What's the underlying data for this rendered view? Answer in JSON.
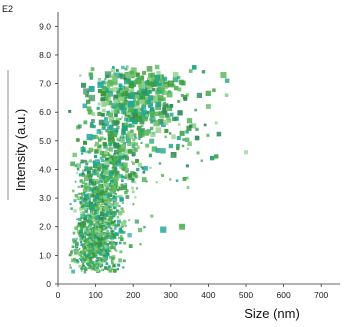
{
  "chart_data": {
    "type": "scatter",
    "panel_label": "E2",
    "xlabel": "Size (nm)",
    "ylabel": "Intensity (a.u.)",
    "xlim": [
      0,
      750
    ],
    "ylim": [
      0,
      9.5
    ],
    "x_ticks": [
      "0",
      "100",
      "200",
      "300",
      "400",
      "500",
      "600",
      "700"
    ],
    "y_ticks": [
      "0",
      "1.0",
      "2.0",
      "3.0",
      "4.0",
      "5.0",
      "6.0",
      "7.0",
      "8.0",
      "9.0"
    ],
    "grid": false,
    "legend": "none",
    "colors": [
      "#3a9b3a",
      "#5cb85c",
      "#2e8b57",
      "#7cc576",
      "#1fa37a",
      "#4caf50",
      "#8fd18a",
      "#26a69a"
    ],
    "clusters": [
      {
        "cx": 110,
        "cy": 2.2,
        "sx": 30,
        "sy": 1.2,
        "n": 900,
        "size": [
          1.5,
          4
        ]
      },
      {
        "cx": 150,
        "cy": 4.5,
        "sx": 45,
        "sy": 1.5,
        "n": 450,
        "size": [
          2,
          5
        ]
      },
      {
        "cx": 210,
        "cy": 6.5,
        "sx": 55,
        "sy": 0.7,
        "n": 320,
        "size": [
          2.5,
          6.5
        ]
      },
      {
        "cx": 300,
        "cy": 5.5,
        "sx": 60,
        "sy": 1.2,
        "n": 80,
        "size": [
          2,
          5.5
        ]
      },
      {
        "cx": 85,
        "cy": 1.2,
        "sx": 25,
        "sy": 0.5,
        "n": 300,
        "size": [
          1.2,
          3
        ]
      }
    ],
    "outliers": [
      {
        "x": 500,
        "y": 4.6
      },
      {
        "x": 440,
        "y": 7.3
      },
      {
        "x": 450,
        "y": 7.1
      },
      {
        "x": 400,
        "y": 6.2
      },
      {
        "x": 370,
        "y": 5.1
      },
      {
        "x": 330,
        "y": 2.0
      },
      {
        "x": 280,
        "y": 1.9
      },
      {
        "x": 350,
        "y": 4.9
      },
      {
        "x": 410,
        "y": 4.4
      },
      {
        "x": 300,
        "y": 7.0
      }
    ]
  }
}
